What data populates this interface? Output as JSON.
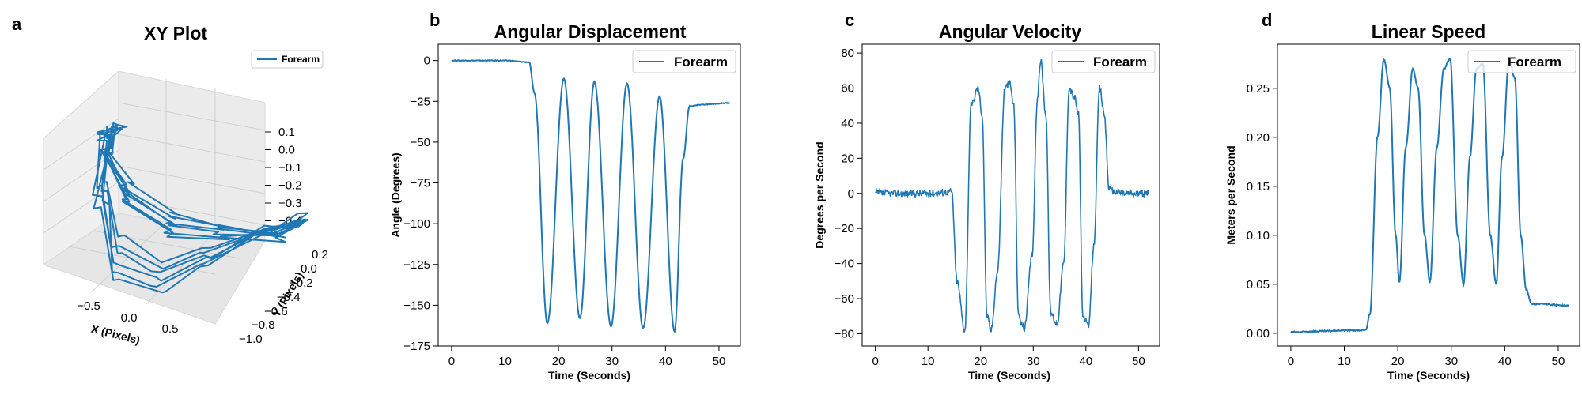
{
  "colors": {
    "series": "#1f77b4",
    "pane_fill": "#f2f2f2",
    "grid": "#d0d0d0"
  },
  "chart_data": [
    {
      "type": "line",
      "panel": "a",
      "title": "XY Plot",
      "xlabel": "X (Pixels)",
      "ylabel": "Y (Pixels)",
      "zlabel": "",
      "projection": "3d",
      "xlim": [
        -0.9,
        0.9
      ],
      "ylim": [
        -1.0,
        0.3
      ],
      "zlim": [
        -0.45,
        0.15
      ],
      "x_ticks": [
        "−0.5",
        "0.0",
        "0.5"
      ],
      "y_ticks": [
        "−1.0",
        "−0.8",
        "−0.6",
        "−0.4",
        "−0.2",
        "0.0",
        "0.2"
      ],
      "z_ticks": [
        "0.1",
        "0.0",
        "−0.1",
        "−0.2",
        "−0.3",
        "−0.4"
      ],
      "grid": true,
      "legend": "top-right",
      "series": [
        {
          "name": "Forearm",
          "cycles": 6,
          "description_points": []
        }
      ]
    },
    {
      "type": "line",
      "panel": "b",
      "title": "Angular Displacement",
      "xlabel": "Time (Seconds)",
      "ylabel": "Angle (Degrees)",
      "xlim": [
        -2.5,
        54
      ],
      "ylim": [
        -175,
        10
      ],
      "x_ticks": [
        0,
        10,
        20,
        30,
        40,
        50
      ],
      "y_ticks": [
        0,
        -25,
        -50,
        -75,
        -100,
        -125,
        -150,
        -175
      ],
      "y_tick_labels": [
        "0",
        "−25",
        "−50",
        "−75",
        "−100",
        "−125",
        "−150",
        "−175"
      ],
      "legend": "top-right",
      "series": [
        {
          "name": "Forearm",
          "x": [
            0,
            5,
            10,
            14.5,
            15.5,
            17.9,
            21.0,
            24.0,
            26.7,
            29.8,
            32.8,
            35.8,
            38.9,
            41.7,
            43.3,
            44.5,
            47,
            52
          ],
          "y": [
            0,
            0,
            0,
            -1,
            -20,
            -161,
            -11,
            -158,
            -13,
            -163,
            -14,
            -164,
            -22,
            -166,
            -60,
            -28,
            -27,
            -26
          ]
        }
      ]
    },
    {
      "type": "line",
      "panel": "c",
      "title": "Angular Velocity",
      "xlabel": "Time (Seconds)",
      "ylabel": "Degrees per Second",
      "xlim": [
        -2.5,
        54
      ],
      "ylim": [
        -87,
        85
      ],
      "x_ticks": [
        0,
        10,
        20,
        30,
        40,
        50
      ],
      "y_ticks": [
        80,
        60,
        40,
        20,
        0,
        -20,
        -40,
        -60,
        -80
      ],
      "y_tick_labels": [
        "80",
        "60",
        "40",
        "20",
        "0",
        "−20",
        "−40",
        "−60",
        "−80"
      ],
      "legend": "top-right",
      "series": [
        {
          "name": "Forearm",
          "x": [
            0,
            5,
            10,
            14.5,
            15.5,
            17.0,
            18.2,
            19.5,
            20.3,
            21.2,
            22.0,
            23.2,
            24.6,
            25.5,
            26.3,
            27.2,
            28.3,
            29.8,
            30.8,
            31.4,
            32.4,
            33.3,
            34.5,
            35.8,
            36.8,
            37.8,
            38.6,
            39.4,
            40.5,
            41.5,
            42.6,
            43.5,
            44.4,
            45,
            48,
            52
          ],
          "y": [
            0,
            0,
            0,
            1,
            -50,
            -78,
            50,
            60,
            45,
            -70,
            -78,
            -45,
            60,
            63,
            50,
            -70,
            -77,
            -35,
            55,
            76,
            45,
            -68,
            -74,
            -40,
            60,
            55,
            45,
            -70,
            -76,
            -30,
            60,
            45,
            3,
            1,
            0,
            0
          ]
        }
      ]
    },
    {
      "type": "line",
      "panel": "d",
      "title": "Linear Speed",
      "xlabel": "Time (Seconds)",
      "ylabel": "Meters per Second",
      "xlim": [
        -2.5,
        54
      ],
      "ylim": [
        -0.013,
        0.295
      ],
      "x_ticks": [
        0,
        10,
        20,
        30,
        40,
        50
      ],
      "y_ticks": [
        0.0,
        0.05,
        0.1,
        0.15,
        0.2,
        0.25
      ],
      "y_tick_labels": [
        "0.00",
        "0.05",
        "0.10",
        "0.15",
        "0.20",
        "0.25"
      ],
      "legend": "top-right",
      "series": [
        {
          "name": "Forearm",
          "x": [
            0,
            5,
            10,
            14.0,
            14.8,
            16.2,
            17.4,
            18.5,
            19.6,
            20.3,
            21.5,
            22.8,
            23.8,
            25.0,
            26.0,
            27.3,
            28.6,
            29.8,
            31.2,
            32.3,
            33.5,
            34.7,
            35.9,
            37.3,
            38.4,
            39.5,
            40.8,
            41.9,
            43.0,
            44.0,
            45.0,
            46.5,
            52
          ],
          "y": [
            0.001,
            0.002,
            0.003,
            0.003,
            0.02,
            0.2,
            0.28,
            0.25,
            0.1,
            0.052,
            0.19,
            0.27,
            0.25,
            0.1,
            0.052,
            0.19,
            0.27,
            0.28,
            0.1,
            0.05,
            0.18,
            0.27,
            0.275,
            0.1,
            0.05,
            0.18,
            0.28,
            0.26,
            0.1,
            0.045,
            0.03,
            0.03,
            0.028
          ]
        }
      ]
    }
  ]
}
